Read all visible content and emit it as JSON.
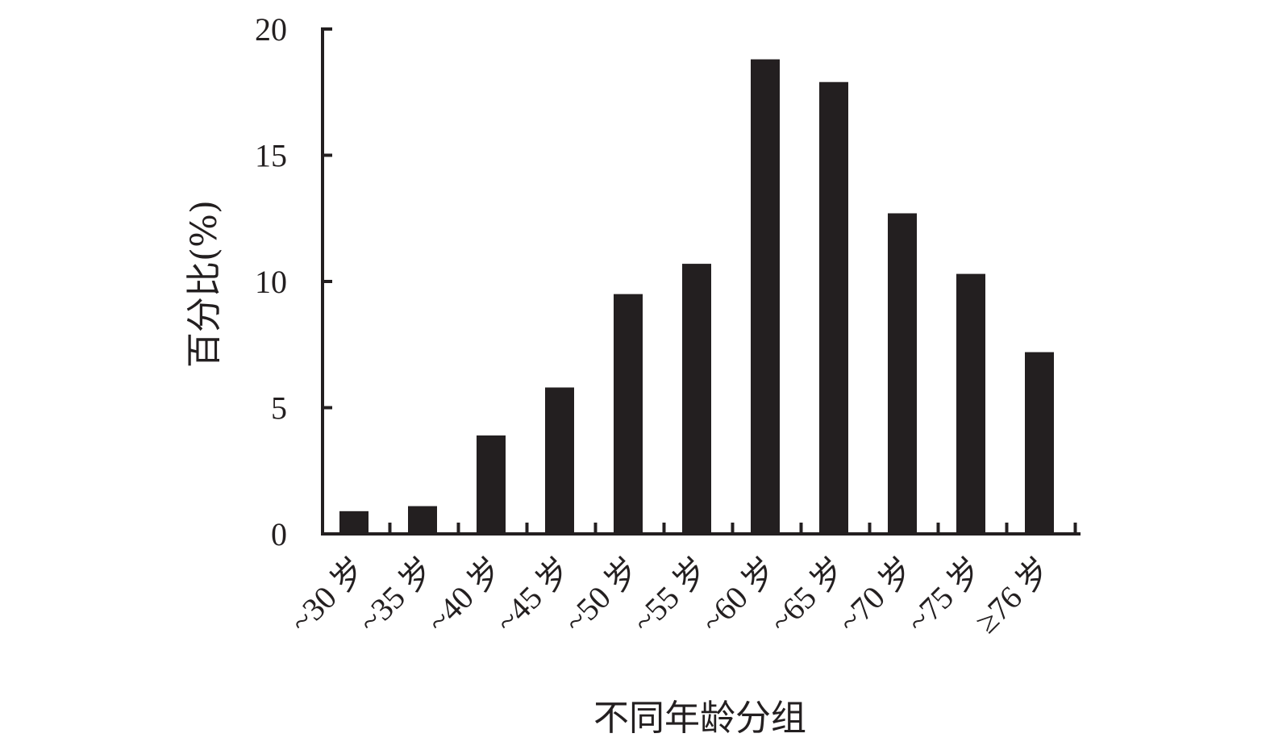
{
  "colors": {
    "bar": "#231f20",
    "axis": "#231f20",
    "text": "#231f20"
  },
  "chart_data": {
    "type": "bar",
    "title": "",
    "xlabel": "不同年龄分组",
    "ylabel": "百分比(%)",
    "categories": [
      "~30 岁",
      "~35 岁",
      "~40 岁",
      "~45 岁",
      "~50 岁",
      "~55 岁",
      "~60 岁",
      "~65 岁",
      "~70 岁",
      "~75 岁",
      "≥76 岁"
    ],
    "values": [
      0.9,
      1.1,
      3.9,
      5.8,
      9.5,
      10.7,
      18.8,
      17.9,
      12.7,
      10.3,
      7.2
    ],
    "ylim": [
      0,
      20
    ],
    "yticks": [
      "0",
      "5",
      "10",
      "15",
      "20"
    ],
    "grid": false,
    "legend": "none"
  }
}
